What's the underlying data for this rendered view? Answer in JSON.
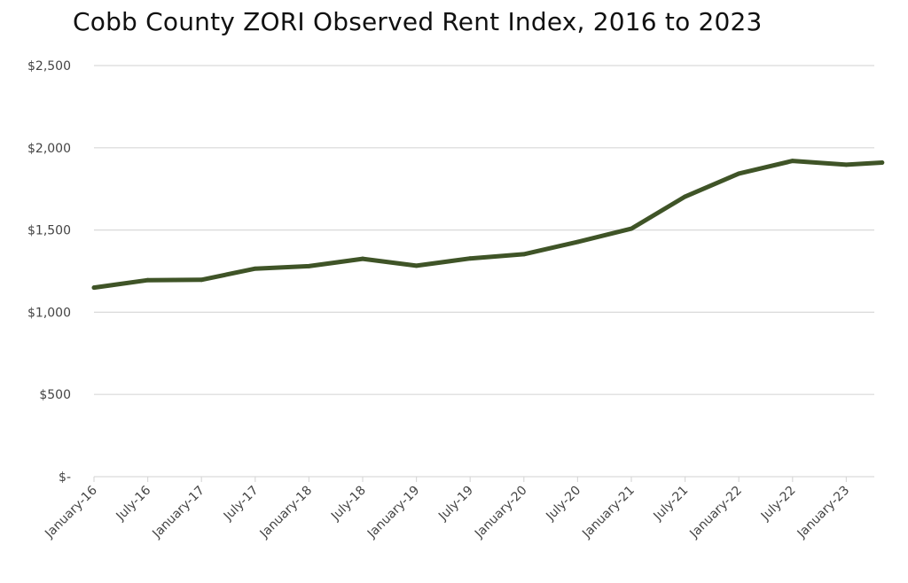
{
  "chart_data": {
    "type": "line",
    "title": "Cobb County ZORI Observed Rent Index, 2016 to 2023",
    "xlabel": "",
    "ylabel": "",
    "ylim": [
      0,
      2500
    ],
    "yticks": [
      {
        "value": 0,
        "label": "$-"
      },
      {
        "value": 500,
        "label": "$500"
      },
      {
        "value": 1000,
        "label": "$1,000"
      },
      {
        "value": 1500,
        "label": "$1,500"
      },
      {
        "value": 2000,
        "label": "$2,000"
      },
      {
        "value": 2500,
        "label": "$2,500"
      }
    ],
    "categories": [
      "January-16",
      "July-16",
      "January-17",
      "July-17",
      "January-18",
      "July-18",
      "January-19",
      "July-19",
      "January-20",
      "July-20",
      "January-21",
      "July-21",
      "January-22",
      "July-22",
      "January-23"
    ],
    "grid": true,
    "legend": "none",
    "series": [
      {
        "color": "#3f5427",
        "x": [
          "January-16",
          "July-16",
          "January-17",
          "July-17",
          "January-18",
          "July-18",
          "January-19",
          "July-19",
          "January-20",
          "July-20",
          "January-21",
          "July-21",
          "January-22",
          "July-22",
          "January-23",
          "May-23"
        ],
        "values": [
          1150,
          1195,
          1197,
          1265,
          1280,
          1325,
          1283,
          1327,
          1353,
          1427,
          1508,
          1703,
          1843,
          1920,
          1897,
          1910
        ]
      }
    ]
  }
}
